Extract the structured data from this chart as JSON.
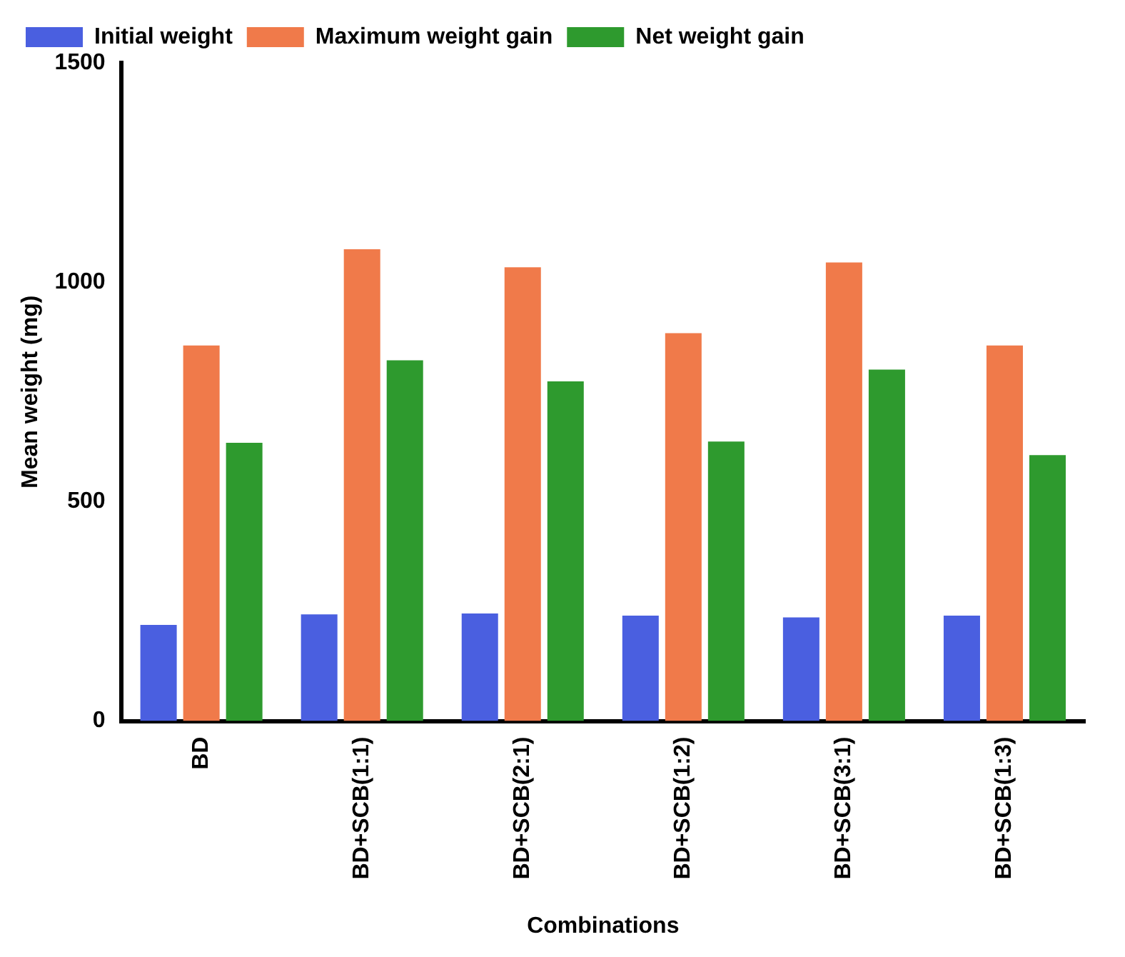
{
  "chart_data": {
    "type": "bar",
    "xlabel": "Combinations",
    "ylabel": "Mean weight (mg)",
    "categories": [
      "BD",
      "BD+SCB(1:1)",
      "BD+SCB(2:1)",
      "BD+SCB(1:2)",
      "BD+SCB(3:1)",
      "BD+SCB(1:3)"
    ],
    "series": [
      {
        "name": "Initial weight",
        "color": "#4a5fe0",
        "values": [
          219,
          243,
          245,
          240,
          236,
          240
        ]
      },
      {
        "name": "Maximum weight gain",
        "color": "#f07a4a",
        "values": [
          856,
          1075,
          1034,
          884,
          1045,
          856
        ]
      },
      {
        "name": "Net weight gain",
        "color": "#2e9a2e",
        "values": [
          634,
          822,
          774,
          637,
          801,
          606
        ]
      }
    ],
    "ylim": [
      0,
      1500
    ],
    "yticks": [
      0,
      500,
      1000,
      1500
    ],
    "grid": false,
    "legend": "top"
  }
}
